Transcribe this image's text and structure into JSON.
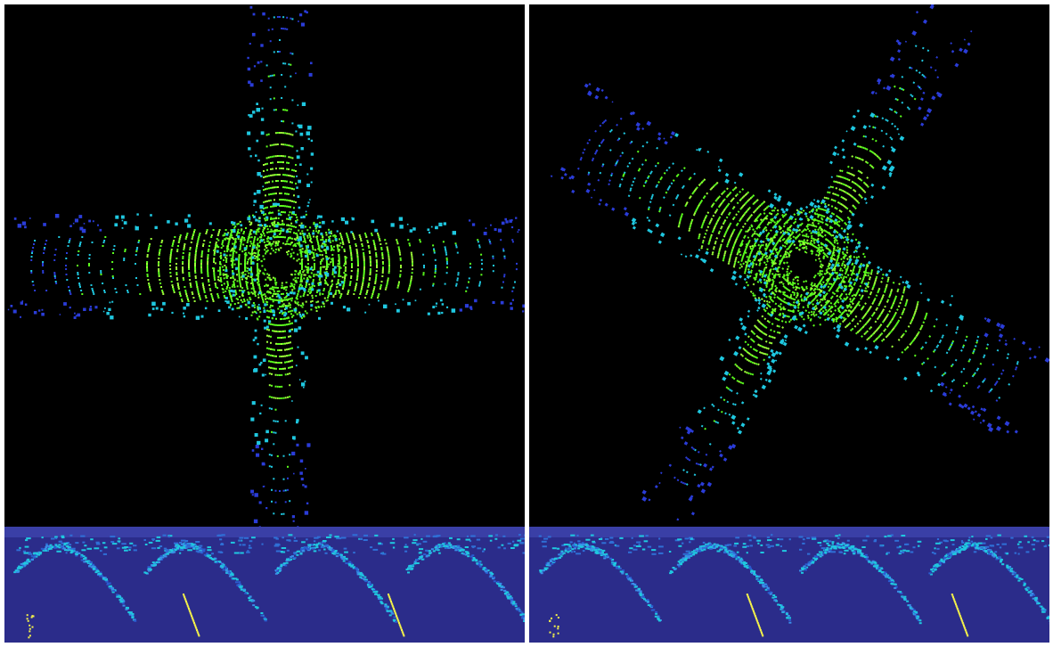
{
  "scene": {
    "panels": [
      {
        "id": "left",
        "birdseye_rotation_deg": 0,
        "range_image_shift": 0
      },
      {
        "id": "right",
        "birdseye_rotation_deg": 30,
        "range_image_shift": 0.25
      }
    ],
    "colors": {
      "background": "#000000",
      "range_bg": "#2b2c8a",
      "range_top": "#3a3fa6",
      "points_near": "#5cff1e",
      "points_mid": "#9dff3a",
      "points_far": "#1fc8e0",
      "points_farthest": "#2a3cd8",
      "highlight": "#f4f24a",
      "ego": "#000000"
    }
  }
}
